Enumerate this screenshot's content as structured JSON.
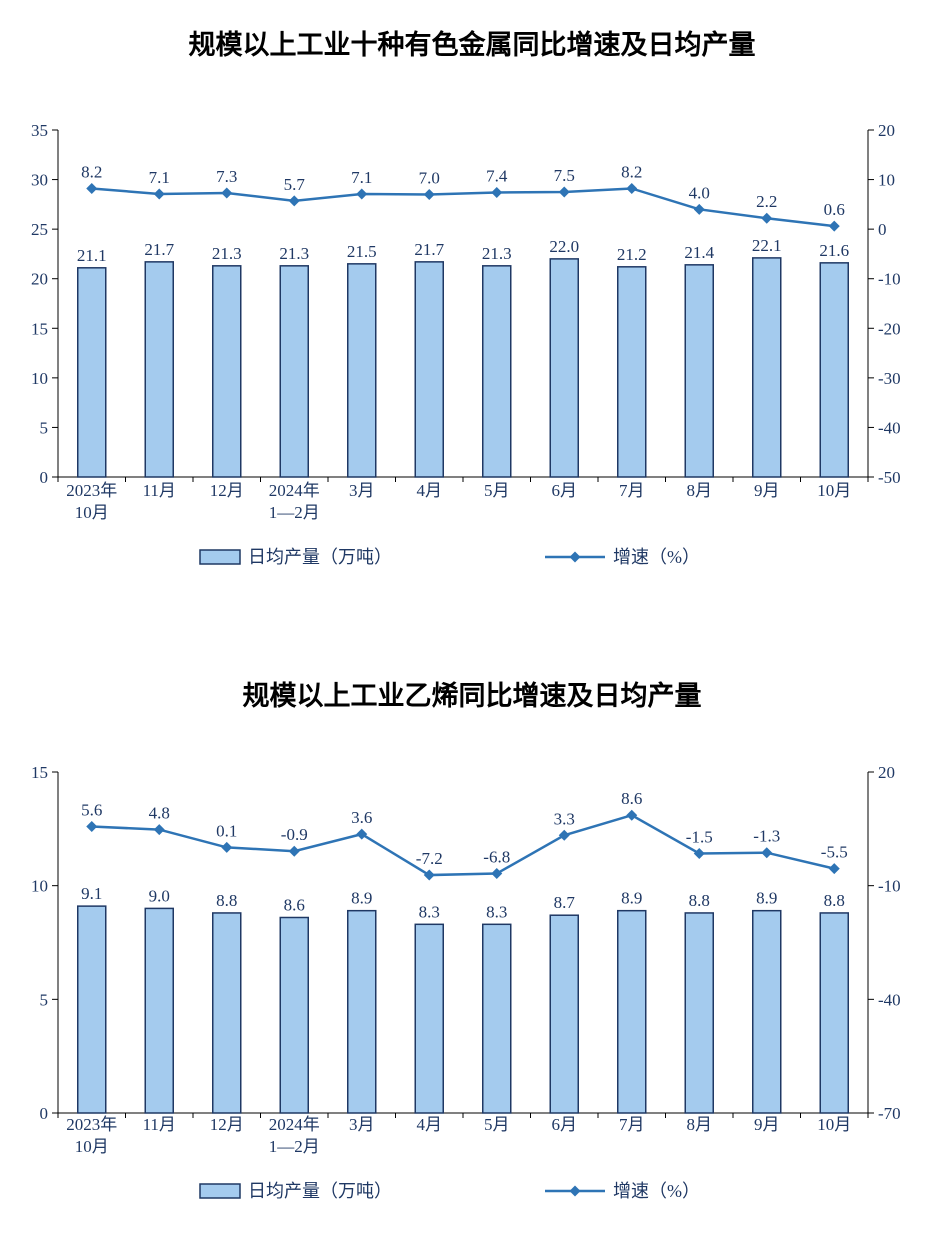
{
  "colors": {
    "bar_fill": "#A4CBEE",
    "bar_border": "#1F3864",
    "line": "#2E74B5",
    "axis": "#000000",
    "label": "#1F3864",
    "title": "#000000"
  },
  "chart_data": [
    {
      "type": "bar+line",
      "title": "规模以上工业十种有色金属同比增速及日均产量",
      "categories": [
        "2023年\n10月",
        "11月",
        "12月",
        "2024年\n1—2月",
        "3月",
        "4月",
        "5月",
        "6月",
        "7月",
        "8月",
        "9月",
        "10月"
      ],
      "series": [
        {
          "name": "日均产量（万吨）",
          "type": "bar",
          "axis": "left",
          "values": [
            21.1,
            21.7,
            21.3,
            21.3,
            21.5,
            21.7,
            21.3,
            22.0,
            21.2,
            21.4,
            22.1,
            21.6
          ],
          "labels": [
            "21.1",
            "21.7",
            "21.3",
            "21.3",
            "21.5",
            "21.7",
            "21.3",
            "22.0",
            "21.2",
            "21.4",
            "22.1",
            "21.6"
          ]
        },
        {
          "name": "增速（%）",
          "type": "line",
          "axis": "right",
          "values": [
            8.2,
            7.1,
            7.3,
            5.7,
            7.1,
            7.0,
            7.4,
            7.5,
            8.2,
            4.0,
            2.2,
            0.6
          ],
          "labels": [
            "8.2",
            "7.1",
            "7.3",
            "5.7",
            "7.1",
            "7.0",
            "7.4",
            "7.5",
            "8.2",
            "4.0",
            "2.2",
            "0.6"
          ]
        }
      ],
      "left_axis": {
        "min": 0,
        "max": 35,
        "step": 5
      },
      "right_axis": {
        "min": -50,
        "max": 20,
        "step": 10
      },
      "grid": false,
      "legend_position": "bottom",
      "legend": [
        "日均产量（万吨）",
        "增速（%）"
      ]
    },
    {
      "type": "bar+line",
      "title": "规模以上工业乙烯同比增速及日均产量",
      "categories": [
        "2023年\n10月",
        "11月",
        "12月",
        "2024年\n1—2月",
        "3月",
        "4月",
        "5月",
        "6月",
        "7月",
        "8月",
        "9月",
        "10月"
      ],
      "series": [
        {
          "name": "日均产量（万吨）",
          "type": "bar",
          "axis": "left",
          "values": [
            9.1,
            9.0,
            8.8,
            8.6,
            8.9,
            8.3,
            8.3,
            8.7,
            8.9,
            8.8,
            8.9,
            8.8
          ],
          "labels": [
            "9.1",
            "9.0",
            "8.8",
            "8.6",
            "8.9",
            "8.3",
            "8.3",
            "8.7",
            "8.9",
            "8.8",
            "8.9",
            "8.8"
          ]
        },
        {
          "name": "增速（%）",
          "type": "line",
          "axis": "right",
          "values": [
            5.6,
            4.8,
            0.1,
            -0.9,
            3.6,
            -7.2,
            -6.8,
            3.3,
            8.6,
            -1.5,
            -1.3,
            -5.5
          ],
          "labels": [
            "5.6",
            "4.8",
            "0.1",
            "-0.9",
            "3.6",
            "-7.2",
            "-6.8",
            "3.3",
            "8.6",
            "-1.5",
            "-1.3",
            "-5.5"
          ]
        }
      ],
      "left_axis": {
        "min": 0,
        "max": 15,
        "step": 5
      },
      "right_axis": {
        "min": -70,
        "max": 20,
        "step": 30
      },
      "grid": false,
      "legend_position": "bottom",
      "legend": [
        "日均产量（万吨）",
        "增速（%）"
      ]
    }
  ]
}
